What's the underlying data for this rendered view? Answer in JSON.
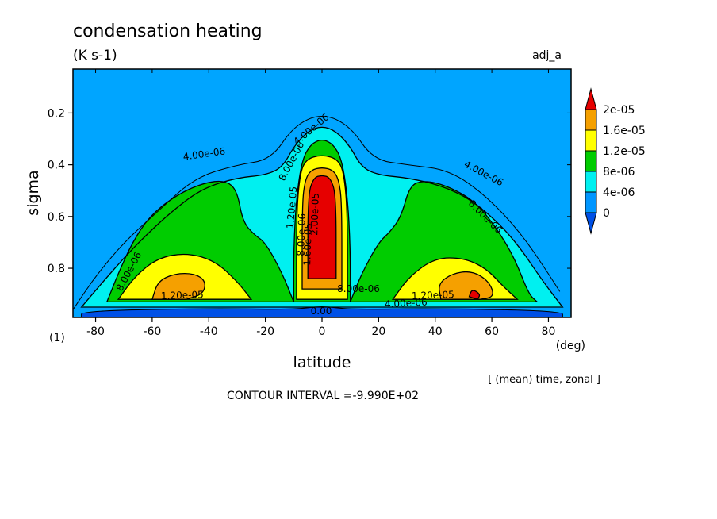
{
  "chart_data": {
    "type": "contour",
    "title": "condensation heating",
    "subtitle": "(K s-1)",
    "run_label": "adj_a",
    "xlabel": "latitude",
    "ylabel": "sigma",
    "x_units": "(deg)",
    "page_marker": "(1)",
    "note": "[ (mean) time, zonal ]",
    "contour_interval": "CONTOUR INTERVAL =-9.990E+02",
    "xlim": [
      -88,
      88
    ],
    "ylim": [
      0.03,
      0.99
    ],
    "y_reversed": true,
    "x_ticks": [
      -80,
      -60,
      -40,
      -20,
      0,
      20,
      40,
      60,
      80
    ],
    "x_tick_labels": [
      "-80",
      "-60",
      "-40",
      "-20",
      "0",
      "20",
      "40",
      "60",
      "80"
    ],
    "y_ticks": [
      0.2,
      0.4,
      0.6,
      0.8
    ],
    "y_tick_labels": [
      "0.2",
      "0.4",
      "0.6",
      "0.8"
    ],
    "levels": [
      0,
      4e-06,
      8e-06,
      1.2e-05,
      1.6e-05,
      2e-05
    ],
    "colorbar": {
      "labels": [
        "2e-05",
        "1.6e-05",
        "1.2e-05",
        "8e-06",
        "4e-06",
        "0"
      ],
      "colors": [
        "#e60000",
        "#f5a000",
        "#ffff00",
        "#00cc00",
        "#00f0f0",
        "#0096ff",
        "#0050e6"
      ]
    },
    "fill_colors": {
      "background": "#00a5ff",
      "lev4e6": "#00f0f0",
      "lev8e6": "#00cc00",
      "lev12e6": "#ffff00",
      "lev16e6": "#f5a000",
      "lev20e6": "#e60000",
      "near_zero": "#0050e6"
    },
    "contour_labels": [
      "4.00e-06",
      "4.00e-06",
      "8.00e-06",
      "8.00e-06",
      "8.00e-06",
      "1.20e-05",
      "1.20e-05",
      "1.20e-05",
      "4.00e-06",
      "8.00e-06",
      "1.60e-05",
      "2.00e-05",
      "8.00e-06",
      "4.00e-06",
      "0.00"
    ],
    "regions": [
      {
        "level": 4e-06,
        "description": "broad band",
        "points": [
          [
            -85,
            0.95
          ],
          [
            -78,
            0.86
          ],
          [
            -70,
            0.76
          ],
          [
            -62,
            0.67
          ],
          [
            -52,
            0.57
          ],
          [
            -42,
            0.49
          ],
          [
            -30,
            0.45
          ],
          [
            -20,
            0.44
          ],
          [
            -14,
            0.41
          ],
          [
            -10,
            0.33
          ],
          [
            -5,
            0.27
          ],
          [
            0,
            0.25
          ],
          [
            5,
            0.27
          ],
          [
            10,
            0.33
          ],
          [
            14,
            0.41
          ],
          [
            20,
            0.44
          ],
          [
            30,
            0.45
          ],
          [
            42,
            0.48
          ],
          [
            52,
            0.53
          ],
          [
            62,
            0.62
          ],
          [
            70,
            0.72
          ],
          [
            78,
            0.85
          ],
          [
            85,
            0.95
          ]
        ]
      },
      {
        "level": 8e-06,
        "description": "southern lobe",
        "points": [
          [
            -76,
            0.93
          ],
          [
            -72,
            0.82
          ],
          [
            -67,
            0.7
          ],
          [
            -61,
            0.6
          ],
          [
            -52,
            0.52
          ],
          [
            -42,
            0.47
          ],
          [
            -34,
            0.46
          ],
          [
            -30,
            0.5
          ],
          [
            -28,
            0.62
          ],
          [
            -24,
            0.67
          ],
          [
            -20,
            0.7
          ],
          [
            -14,
            0.82
          ],
          [
            -10,
            0.93
          ]
        ]
      },
      {
        "level": 8e-06,
        "description": "equatorial column",
        "points": [
          [
            -10,
            0.93
          ],
          [
            -10,
            0.72
          ],
          [
            -9,
            0.52
          ],
          [
            -7,
            0.38
          ],
          [
            -4,
            0.32
          ],
          [
            0,
            0.3
          ],
          [
            4,
            0.32
          ],
          [
            7,
            0.38
          ],
          [
            9,
            0.52
          ],
          [
            10,
            0.72
          ],
          [
            10,
            0.93
          ]
        ]
      },
      {
        "level": 8e-06,
        "description": "northern lobe",
        "points": [
          [
            10,
            0.93
          ],
          [
            14,
            0.82
          ],
          [
            20,
            0.7
          ],
          [
            24,
            0.66
          ],
          [
            28,
            0.6
          ],
          [
            31,
            0.48
          ],
          [
            36,
            0.46
          ],
          [
            44,
            0.48
          ],
          [
            54,
            0.54
          ],
          [
            62,
            0.65
          ],
          [
            68,
            0.76
          ],
          [
            73,
            0.9
          ],
          [
            76,
            0.93
          ]
        ]
      },
      {
        "level": 1.2e-05,
        "description": "southern",
        "points": [
          [
            -72,
            0.92
          ],
          [
            -66,
            0.83
          ],
          [
            -58,
            0.76
          ],
          [
            -48,
            0.74
          ],
          [
            -38,
            0.77
          ],
          [
            -30,
            0.85
          ],
          [
            -25,
            0.92
          ]
        ]
      },
      {
        "level": 1.2e-05,
        "description": "northern",
        "points": [
          [
            25,
            0.92
          ],
          [
            31,
            0.83
          ],
          [
            40,
            0.76
          ],
          [
            50,
            0.76
          ],
          [
            58,
            0.8
          ],
          [
            64,
            0.87
          ],
          [
            69,
            0.92
          ]
        ]
      },
      {
        "level": 1.2e-05,
        "description": "equatorial",
        "points": [
          [
            -9,
            0.92
          ],
          [
            -9,
            0.6
          ],
          [
            -8,
            0.45
          ],
          [
            -6,
            0.38
          ],
          [
            0,
            0.36
          ],
          [
            6,
            0.38
          ],
          [
            8,
            0.45
          ],
          [
            9,
            0.6
          ],
          [
            9,
            0.92
          ]
        ]
      },
      {
        "level": 1.6e-05,
        "description": "southern",
        "points": [
          [
            -60,
            0.92
          ],
          [
            -58,
            0.85
          ],
          [
            -52,
            0.82
          ],
          [
            -45,
            0.82
          ],
          [
            -41,
            0.85
          ],
          [
            -42,
            0.9
          ],
          [
            -48,
            0.92
          ]
        ]
      },
      {
        "level": 1.6e-05,
        "description": "northern",
        "points": [
          [
            42,
            0.92
          ],
          [
            41,
            0.86
          ],
          [
            46,
            0.82
          ],
          [
            53,
            0.81
          ],
          [
            59,
            0.85
          ],
          [
            61,
            0.91
          ],
          [
            56,
            0.92
          ]
        ]
      },
      {
        "level": 1.6e-05,
        "description": "equatorial",
        "points": [
          [
            -7,
            0.88
          ],
          [
            -7,
            0.55
          ],
          [
            -6,
            0.46
          ],
          [
            -4,
            0.42
          ],
          [
            0,
            0.41
          ],
          [
            4,
            0.42
          ],
          [
            6,
            0.46
          ],
          [
            7,
            0.55
          ],
          [
            7,
            0.88
          ]
        ]
      },
      {
        "level": 2e-05,
        "description": "equatorial core",
        "points": [
          [
            -5,
            0.84
          ],
          [
            -5,
            0.52
          ],
          [
            -3,
            0.45
          ],
          [
            0,
            0.44
          ],
          [
            3,
            0.45
          ],
          [
            5,
            0.52
          ],
          [
            5,
            0.84
          ]
        ]
      },
      {
        "level": 2e-05,
        "description": "northern spot",
        "points": [
          [
            52,
            0.91
          ],
          [
            53,
            0.88
          ],
          [
            56,
            0.9
          ],
          [
            55,
            0.92
          ]
        ]
      },
      {
        "level": 0,
        "description": "near surface band",
        "points": [
          [
            -85,
            0.99
          ],
          [
            -85,
            0.965
          ],
          [
            -40,
            0.955
          ],
          [
            -10,
            0.96
          ],
          [
            0,
            0.945
          ],
          [
            10,
            0.96
          ],
          [
            40,
            0.955
          ],
          [
            85,
            0.965
          ],
          [
            85,
            0.99
          ]
        ]
      }
    ]
  }
}
